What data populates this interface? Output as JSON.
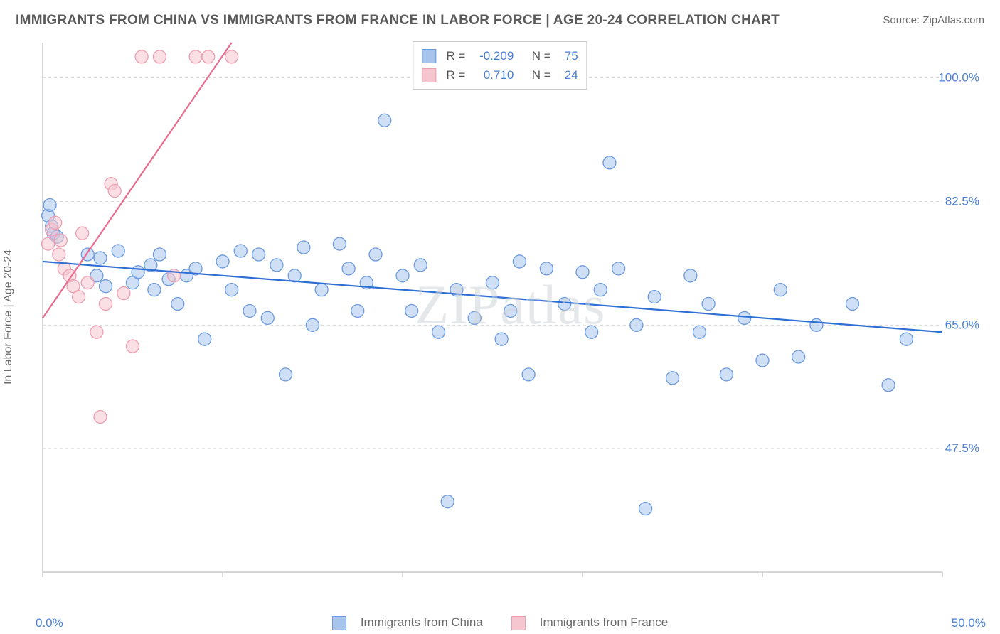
{
  "title": "IMMIGRANTS FROM CHINA VS IMMIGRANTS FROM FRANCE IN LABOR FORCE | AGE 20-24 CORRELATION CHART",
  "source_prefix": "Source: ",
  "source_name": "ZipAtlas.com",
  "watermark": "ZIPatlas",
  "y_axis_label": "In Labor Force | Age 20-24",
  "chart": {
    "type": "scatter",
    "xlim": [
      0,
      50
    ],
    "ylim": [
      30,
      105
    ],
    "x_ticks": [
      0,
      50
    ],
    "x_tick_labels": [
      "0.0%",
      "50.0%"
    ],
    "x_minor_ticks": [
      10,
      20,
      30,
      40
    ],
    "y_ticks": [
      47.5,
      65.0,
      82.5,
      100.0
    ],
    "y_tick_labels": [
      "47.5%",
      "65.0%",
      "82.5%",
      "100.0%"
    ],
    "grid_color": "#d9d9d9",
    "axis_color": "#c9c9c9",
    "tick_label_color": "#4a7fd8",
    "marker_radius": 9,
    "marker_opacity": 0.55,
    "line_width": 2.2,
    "series": [
      {
        "name": "Immigrants from China",
        "color_fill": "#a7c4ec",
        "color_stroke": "#6b9ae0",
        "line_color": "#2e6fd6",
        "R": "-0.209",
        "N": "75",
        "trend": {
          "x1": 0,
          "y1": 74.0,
          "x2": 50,
          "y2": 64.0
        },
        "points": [
          [
            0.3,
            80.5
          ],
          [
            0.5,
            79.0
          ],
          [
            0.6,
            78.0
          ],
          [
            0.8,
            77.5
          ],
          [
            0.4,
            82.0
          ],
          [
            2.5,
            75.0
          ],
          [
            3.0,
            72.0
          ],
          [
            3.2,
            74.5
          ],
          [
            3.5,
            70.5
          ],
          [
            4.2,
            75.5
          ],
          [
            5.0,
            71.0
          ],
          [
            5.3,
            72.5
          ],
          [
            6.0,
            73.5
          ],
          [
            6.2,
            70.0
          ],
          [
            6.5,
            75.0
          ],
          [
            7.0,
            71.5
          ],
          [
            7.5,
            68.0
          ],
          [
            8.0,
            72.0
          ],
          [
            8.5,
            73.0
          ],
          [
            9.0,
            63.0
          ],
          [
            10.0,
            74.0
          ],
          [
            10.5,
            70.0
          ],
          [
            11.0,
            75.5
          ],
          [
            11.5,
            67.0
          ],
          [
            12.0,
            75.0
          ],
          [
            12.5,
            66.0
          ],
          [
            13.0,
            73.5
          ],
          [
            13.5,
            58.0
          ],
          [
            14.0,
            72.0
          ],
          [
            14.5,
            76.0
          ],
          [
            15.0,
            65.0
          ],
          [
            15.5,
            70.0
          ],
          [
            16.5,
            76.5
          ],
          [
            17.0,
            73.0
          ],
          [
            17.5,
            67.0
          ],
          [
            18.0,
            71.0
          ],
          [
            18.5,
            75.0
          ],
          [
            19.0,
            94.0
          ],
          [
            20.0,
            72.0
          ],
          [
            20.5,
            67.0
          ],
          [
            21.0,
            73.5
          ],
          [
            22.0,
            64.0
          ],
          [
            22.5,
            40.0
          ],
          [
            23.0,
            70.0
          ],
          [
            24.0,
            66.0
          ],
          [
            25.0,
            71.0
          ],
          [
            25.5,
            63.0
          ],
          [
            26.0,
            67.0
          ],
          [
            26.5,
            74.0
          ],
          [
            27.0,
            58.0
          ],
          [
            28.0,
            73.0
          ],
          [
            28.5,
            103.0
          ],
          [
            29.0,
            68.0
          ],
          [
            29.5,
            103.0
          ],
          [
            30.0,
            72.5
          ],
          [
            30.5,
            64.0
          ],
          [
            31.0,
            70.0
          ],
          [
            31.5,
            88.0
          ],
          [
            32.0,
            73.0
          ],
          [
            33.0,
            65.0
          ],
          [
            33.5,
            39.0
          ],
          [
            34.0,
            69.0
          ],
          [
            35.0,
            57.5
          ],
          [
            36.0,
            72.0
          ],
          [
            36.5,
            64.0
          ],
          [
            37.0,
            68.0
          ],
          [
            38.0,
            58.0
          ],
          [
            39.0,
            66.0
          ],
          [
            40.0,
            60.0
          ],
          [
            41.0,
            70.0
          ],
          [
            42.0,
            60.5
          ],
          [
            43.0,
            65.0
          ],
          [
            45.0,
            68.0
          ],
          [
            47.0,
            56.5
          ],
          [
            48.0,
            63.0
          ]
        ]
      },
      {
        "name": "Immigrants from France",
        "color_fill": "#f5c6cf",
        "color_stroke": "#ed9eb0",
        "line_color": "#e86c8f",
        "R": "0.710",
        "N": "24",
        "trend": {
          "x1": 0,
          "y1": 66.0,
          "x2": 10.5,
          "y2": 105.0
        },
        "points": [
          [
            0.3,
            76.5
          ],
          [
            0.5,
            78.5
          ],
          [
            0.7,
            79.5
          ],
          [
            0.9,
            75.0
          ],
          [
            1.0,
            77.0
          ],
          [
            1.2,
            73.0
          ],
          [
            1.5,
            72.0
          ],
          [
            1.7,
            70.5
          ],
          [
            2.0,
            69.0
          ],
          [
            2.2,
            78.0
          ],
          [
            2.5,
            71.0
          ],
          [
            3.0,
            64.0
          ],
          [
            3.2,
            52.0
          ],
          [
            3.5,
            68.0
          ],
          [
            3.8,
            85.0
          ],
          [
            4.0,
            84.0
          ],
          [
            4.5,
            69.5
          ],
          [
            5.0,
            62.0
          ],
          [
            5.5,
            103.0
          ],
          [
            6.5,
            103.0
          ],
          [
            7.3,
            72.0
          ],
          [
            8.5,
            103.0
          ],
          [
            9.2,
            103.0
          ],
          [
            10.5,
            103.0
          ]
        ]
      }
    ]
  },
  "legend": {
    "r_label": "R = ",
    "n_label": "N = "
  },
  "bottom_legend": {
    "items": [
      "Immigrants from China",
      "Immigrants from France"
    ]
  }
}
